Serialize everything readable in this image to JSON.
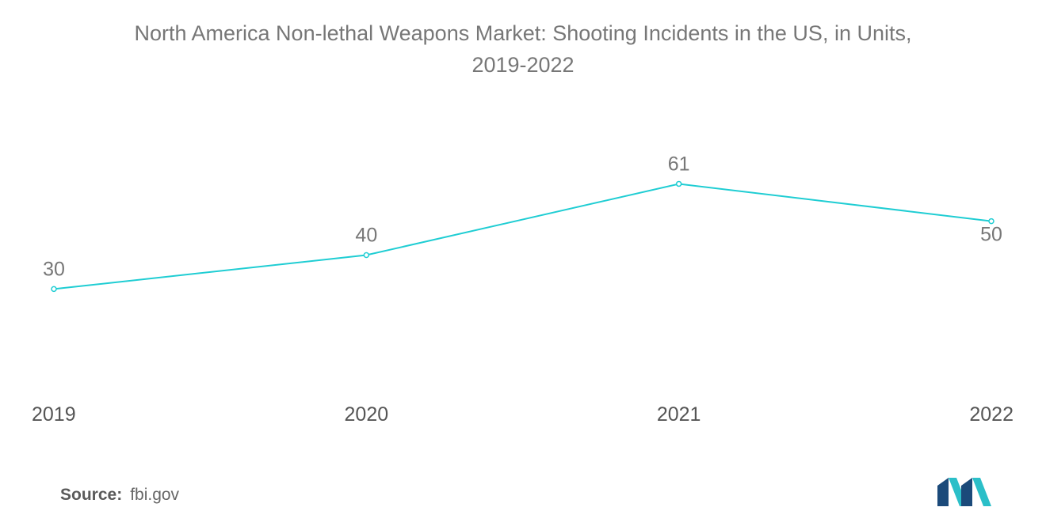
{
  "title_line1": "North America Non-lethal Weapons Market: Shooting Incidents in the US, in Units,",
  "title_line2": "2019-2022",
  "source": {
    "label": "Source:",
    "value": "fbi.gov"
  },
  "colors": {
    "line": "#1fcdd3",
    "text": "#777777",
    "logo_dark": "#1b4a7a",
    "logo_teal": "#2bbfc8"
  },
  "chart_data": {
    "type": "line",
    "title": "North America Non-lethal Weapons Market: Shooting Incidents in the US, in Units, 2019-2022",
    "categories": [
      "2019",
      "2020",
      "2021",
      "2022"
    ],
    "series": [
      {
        "values": [
          30,
          40,
          61,
          50
        ]
      }
    ],
    "data_labels": [
      "30",
      "40",
      "61",
      "50"
    ],
    "xlabel": "",
    "ylabel": "",
    "ylim": [
      0,
      80
    ],
    "grid": false,
    "legend": "none"
  }
}
